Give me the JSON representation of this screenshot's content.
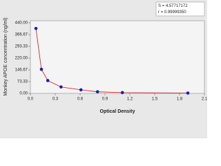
{
  "chart_data": {
    "type": "scatter",
    "x_label": "Optical Density",
    "y_label": "Monkey APOE concentration (ng/ml)",
    "annotations": [
      "S = 4.57717172",
      "r = 0.99999350"
    ],
    "x": [
      0.067,
      0.133,
      0.21,
      0.37,
      0.61,
      0.81,
      1.11,
      1.9
    ],
    "values": [
      405,
      150,
      80,
      40,
      22,
      10,
      5,
      2
    ],
    "color": "#1c1cb4",
    "line_color": "#d01010",
    "xlim": [
      0,
      2.1
    ],
    "xticks": [
      {
        "value": 0,
        "label": "0.0"
      },
      0.3,
      0.6,
      0.9,
      1.2,
      1.5,
      1.8,
      2.1
    ],
    "ylim": [
      0,
      440
    ],
    "yticks": [
      {
        "value": 0,
        "label": "0.00"
      },
      73.33,
      146.67,
      {
        "value": 220,
        "label": "220.00"
      },
      293.33,
      366.67,
      {
        "value": 440,
        "label": "440.00"
      }
    ]
  }
}
